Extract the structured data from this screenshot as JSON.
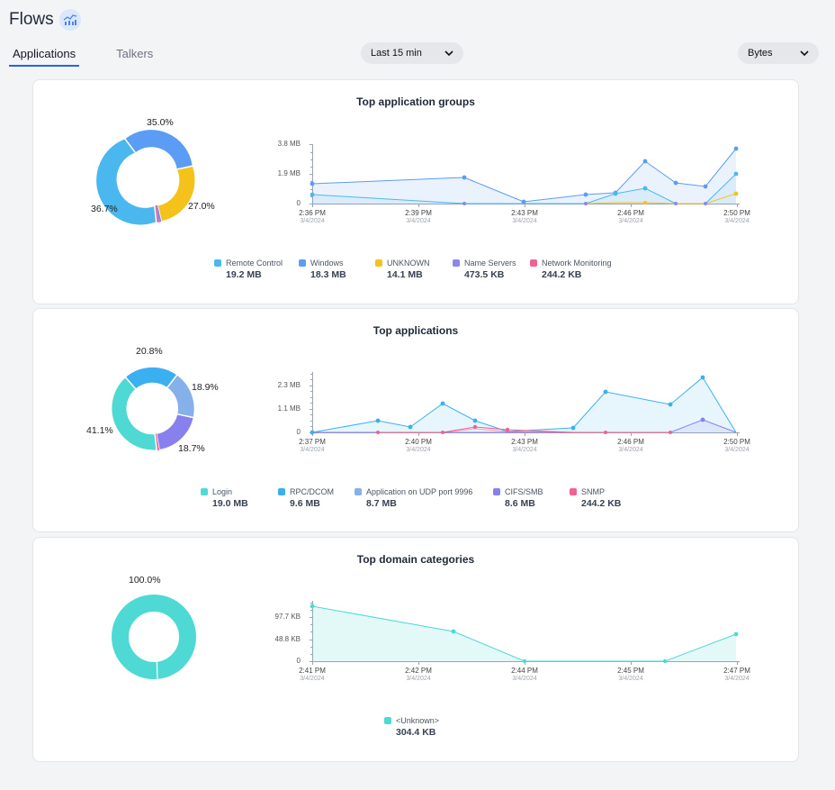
{
  "header": {
    "title": "Flows",
    "icon": "flows-chart-icon"
  },
  "tabs": [
    {
      "label": "Applications",
      "active": true
    },
    {
      "label": "Talkers",
      "active": false
    }
  ],
  "time_select": {
    "value": "Last 15 min"
  },
  "unit_select": {
    "value": "Bytes"
  },
  "cards": [
    {
      "title": "Top application groups",
      "pcts": [
        "35.0%",
        "27.0%",
        "36.7%"
      ],
      "yticks": [
        "3.8 MB",
        "1.9 MB",
        "0"
      ],
      "xticks": [
        {
          "time": "2:36 PM",
          "date": "3/4/2024"
        },
        {
          "time": "2:39 PM",
          "date": "3/4/2024"
        },
        {
          "time": "2:43 PM",
          "date": "3/4/2024"
        },
        {
          "time": "2:46 PM",
          "date": "3/4/2024"
        },
        {
          "time": "2:50 PM",
          "date": "3/4/2024"
        }
      ],
      "legend": [
        {
          "name": "Remote Control",
          "value": "19.2 MB",
          "color": "#4ab8ef"
        },
        {
          "name": "Windows",
          "value": "18.3 MB",
          "color": "#5b9cf5"
        },
        {
          "name": "UNKNOWN",
          "value": "14.1 MB",
          "color": "#f5c21b"
        },
        {
          "name": "Name Servers",
          "value": "473.5 KB",
          "color": "#8b85ee"
        },
        {
          "name": "Network Monitoring",
          "value": "244.2 KB",
          "color": "#f06291"
        }
      ]
    },
    {
      "title": "Top applications",
      "pcts": [
        "20.8%",
        "18.9%",
        "18.7%",
        "41.1%"
      ],
      "yticks": [
        "2.3 MB",
        "1.1 MB",
        "0"
      ],
      "xticks": [
        {
          "time": "2:37 PM",
          "date": "3/4/2024"
        },
        {
          "time": "2:40 PM",
          "date": "3/4/2024"
        },
        {
          "time": "2:43 PM",
          "date": "3/4/2024"
        },
        {
          "time": "2:46 PM",
          "date": "3/4/2024"
        },
        {
          "time": "2:50 PM",
          "date": "3/4/2024"
        }
      ],
      "legend": [
        {
          "name": "Login",
          "value": "19.0 MB",
          "color": "#4fd9d4"
        },
        {
          "name": "RPC/DCOM",
          "value": "9.6 MB",
          "color": "#3bb0f0"
        },
        {
          "name": "Application on UDP port 9996",
          "value": "8.7 MB",
          "color": "#86b0ea"
        },
        {
          "name": "CIFS/SMB",
          "value": "8.6 MB",
          "color": "#8880ec"
        },
        {
          "name": "SNMP",
          "value": "244.2 KB",
          "color": "#f06291"
        }
      ]
    },
    {
      "title": "Top domain categories",
      "pcts": [
        "100.0%"
      ],
      "yticks": [
        "97.7 KB",
        "48.8 KB",
        "0"
      ],
      "xticks": [
        {
          "time": "2:41 PM",
          "date": "3/4/2024"
        },
        {
          "time": "2:42 PM",
          "date": "3/4/2024"
        },
        {
          "time": "2:44 PM",
          "date": "3/4/2024"
        },
        {
          "time": "2:45 PM",
          "date": "3/4/2024"
        },
        {
          "time": "2:47 PM",
          "date": "3/4/2024"
        }
      ],
      "legend": [
        {
          "name": "<Unknown>",
          "value": "304.4 KB",
          "color": "#4fd9d4"
        }
      ]
    }
  ]
}
